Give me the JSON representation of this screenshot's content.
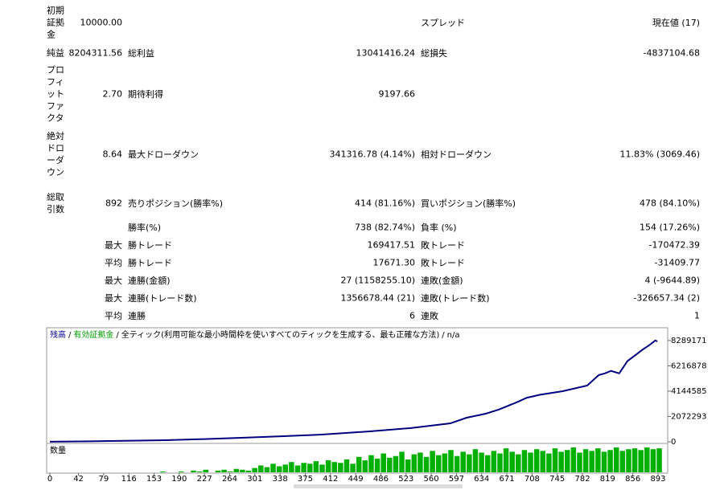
{
  "report": {
    "rows": [
      [
        "初期証拠金",
        "10000.00",
        null,
        null,
        "スプレッド",
        "現在値 (17)"
      ],
      [
        "純益",
        "8204311.56",
        "総利益",
        "13041416.24",
        "総損失",
        "-4837104.68"
      ],
      [
        "プロフィットファクタ",
        "2.70",
        "期待利得",
        "9197.66",
        null,
        null
      ],
      [
        "絶対ドローダウン",
        "8.64",
        "最大ドローダウン",
        "341316.78 (4.14%)",
        "相対ドローダウン",
        "11.83% (3069.46)"
      ],
      [
        "総取引数",
        "892",
        "売りポジション(勝率%)",
        "414 (81.16%)",
        "買いポジション(勝率%)",
        "478 (84.10%)"
      ],
      [
        null,
        null,
        "勝率(%)",
        "738 (82.74%)",
        "負率 (%)",
        "154 (17.26%)"
      ],
      [
        null,
        "最大",
        "勝トレード",
        "169417.51",
        "敗トレード",
        "-170472.39"
      ],
      [
        null,
        "平均",
        "勝トレード",
        "17671.30",
        "敗トレード",
        "-31409.77"
      ],
      [
        null,
        "最大",
        "連勝(金額)",
        "27 (1158255.10)",
        "連敗(金額)",
        "4 (-9644.89)"
      ],
      [
        null,
        "最大",
        "連勝(トレード数)",
        "1356678.44 (21)",
        "連敗(トレード数)",
        "-326657.34 (2)"
      ],
      [
        null,
        "平均",
        "連勝",
        "6",
        "連敗",
        "1"
      ]
    ]
  },
  "chart_data": {
    "type": "line",
    "legend": [
      {
        "text": "残高",
        "color": "#0000a0"
      },
      {
        "text": "有効証拠金",
        "color": "#00a000"
      },
      {
        "text": "全ティック(利用可能な最小時間枠を使いすべてのティックを生成する、最も正確な方法)"
      },
      {
        "text": "n/a"
      }
    ],
    "legend_separator": "/",
    "series": [
      {
        "name": "残高",
        "color": "#000080",
        "x": [
          0,
          60,
          120,
          169,
          220,
          281,
          340,
          399,
          470,
          529,
          588,
          612,
          640,
          659,
          688,
          700,
          720,
          753,
          789,
          806,
          815,
          824,
          836,
          848,
          860,
          871,
          880,
          889,
          892
        ],
        "values": [
          10000,
          45000,
          90000,
          130000,
          210000,
          330000,
          450000,
          590000,
          855000,
          1120000,
          1510000,
          1970000,
          2300000,
          2630000,
          3290000,
          3600000,
          3850000,
          4140000,
          4600000,
          5460000,
          5600000,
          5800000,
          5600000,
          6600000,
          7100000,
          7570000,
          7900000,
          8289171,
          8214311.56
        ]
      }
    ],
    "xlim": [
      0,
      906
    ],
    "xticks": [
      0,
      42,
      79,
      116,
      153,
      190,
      227,
      264,
      301,
      338,
      375,
      412,
      449,
      486,
      523,
      560,
      597,
      634,
      671,
      708,
      745,
      782,
      819,
      856,
      893
    ],
    "ylim": [
      0,
      9200000
    ],
    "yticks": [
      0,
      2072293,
      4144585,
      6216878,
      8289171
    ],
    "volume_label": "数量",
    "volume": {
      "color": "#00b000",
      "ylim": [
        0,
        30
      ],
      "x": [
        0,
        9,
        18,
        27,
        36,
        45,
        54,
        63,
        72,
        81,
        90,
        99,
        108,
        117,
        126,
        135,
        144,
        153,
        162,
        171,
        180,
        189,
        198,
        207,
        216,
        225,
        234,
        243,
        252,
        261,
        270,
        279,
        288,
        297,
        306,
        315,
        324,
        333,
        342,
        351,
        360,
        369,
        378,
        387,
        396,
        405,
        414,
        423,
        432,
        441,
        450,
        459,
        468,
        477,
        486,
        495,
        504,
        513,
        522,
        531,
        540,
        549,
        558,
        567,
        576,
        585,
        594,
        603,
        612,
        621,
        630,
        639,
        648,
        657,
        666,
        675,
        684,
        693,
        702,
        711,
        720,
        729,
        738,
        747,
        756,
        765,
        774,
        783,
        792,
        801,
        810,
        819,
        828,
        837,
        846,
        855,
        864,
        873,
        882,
        891
      ],
      "values": [
        0,
        0,
        0,
        0,
        0,
        0,
        0,
        0,
        0,
        0,
        0,
        0,
        0,
        0,
        0,
        0,
        0,
        0,
        1,
        0,
        0,
        1,
        0,
        2,
        1,
        3,
        0,
        2,
        3,
        1,
        4,
        3,
        2,
        5,
        8,
        6,
        10,
        7,
        9,
        12,
        8,
        11,
        10,
        13,
        9,
        14,
        12,
        11,
        15,
        10,
        18,
        14,
        20,
        16,
        22,
        17,
        19,
        24,
        15,
        21,
        23,
        18,
        25,
        20,
        22,
        26,
        19,
        24,
        21,
        27,
        23,
        20,
        25,
        22,
        28,
        24,
        21,
        26,
        23,
        27,
        25,
        22,
        28,
        24,
        26,
        29,
        23,
        27,
        25,
        28,
        24,
        26,
        29,
        25,
        27,
        28,
        26,
        29,
        27,
        28
      ]
    }
  }
}
